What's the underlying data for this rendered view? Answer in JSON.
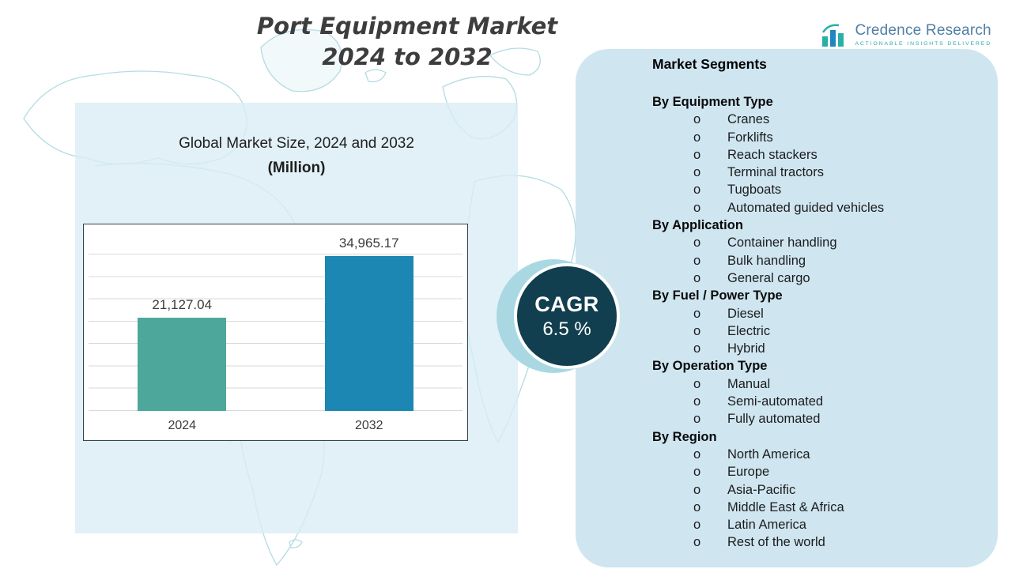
{
  "title": {
    "line1": "Port Equipment Market",
    "line2": "2024 to 2032"
  },
  "logo": {
    "name": "Credence Research",
    "tagline": "Actionable Insights Delivered",
    "colors": {
      "teal": "#29b0a4",
      "blue": "#1f86bf",
      "text": "#4f7fa6"
    }
  },
  "chart_section": {
    "subtitle_line1": "Global Market Size, 2024 and 2032",
    "subtitle_line2": "(Million)"
  },
  "chart_data": {
    "type": "bar",
    "title": "Global Market Size, 2024 and 2032 (Million)",
    "categories": [
      "2024",
      "2032"
    ],
    "values": [
      21127.04,
      34965.17
    ],
    "value_labels": [
      "21,127.04",
      "34,965.17"
    ],
    "bar_colors": [
      "#4da89b",
      "#1d87b4"
    ],
    "xlabel": "",
    "ylabel": "",
    "ylim": [
      0,
      40000
    ],
    "grid": true,
    "legend_position": "none",
    "annotations": [
      "CAGR 6.5 %"
    ]
  },
  "cagr": {
    "label": "CAGR",
    "value": "6.5 %"
  },
  "segments": {
    "title": "Market Segments",
    "bullet": "o",
    "groups": [
      {
        "heading": "By Equipment Type",
        "items": [
          "Cranes",
          "Forklifts",
          "Reach stackers",
          "Terminal tractors",
          "Tugboats",
          "Automated guided vehicles"
        ]
      },
      {
        "heading": "By Application",
        "items": [
          "Container handling",
          "Bulk handling",
          "General cargo"
        ]
      },
      {
        "heading": "By Fuel / Power Type",
        "items": [
          "Diesel",
          "Electric",
          "Hybrid"
        ]
      },
      {
        "heading": "By Operation Type",
        "items": [
          "Manual",
          "Semi-automated",
          "Fully automated"
        ]
      },
      {
        "heading": "By Region",
        "items": [
          "North America",
          "Europe",
          "Asia-Pacific",
          "Middle East & Africa",
          "Latin America",
          "Rest of the world"
        ]
      }
    ]
  }
}
